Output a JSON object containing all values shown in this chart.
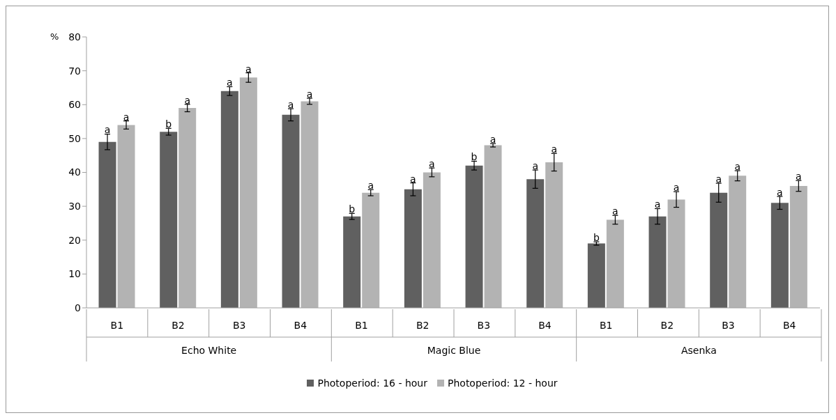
{
  "chart_data": {
    "type": "bar",
    "ylabel": "%",
    "categories": [
      "B1",
      "B2",
      "B3",
      "B4",
      "B1",
      "B2",
      "B3",
      "B4",
      "B1",
      "B2",
      "B3",
      "B4"
    ],
    "annotations": [
      "Echo White",
      "Magic Blue",
      "Asenka"
    ],
    "series": [
      {
        "name": "Photoperiod: 16 - hour",
        "color": "#606060",
        "values": [
          49,
          52,
          64,
          57,
          27,
          35,
          42,
          38,
          19,
          27,
          34,
          31
        ],
        "errors": [
          2.3,
          1,
          1.3,
          1.8,
          0.9,
          1.9,
          1.3,
          2.7,
          0.5,
          2.3,
          2.8,
          1.9
        ],
        "value_labels": [
          "a",
          "b",
          "a",
          "a",
          "b",
          "a",
          "b",
          "a",
          "b",
          "a",
          "a",
          "a"
        ]
      },
      {
        "name": "Photoperiod: 12 - hour",
        "color": "#b3b3b3",
        "values": [
          54,
          59,
          68,
          61,
          34,
          40,
          48,
          43,
          26,
          32,
          39,
          36
        ],
        "errors": [
          1.2,
          1.1,
          1.4,
          0.9,
          0.9,
          1.3,
          0.5,
          2.6,
          1.3,
          2.3,
          1.5,
          1.6
        ],
        "value_labels": [
          "a",
          "a",
          "a",
          "a",
          "a",
          "a",
          "a",
          "a",
          "a",
          "a",
          "a",
          "a"
        ]
      }
    ],
    "ylim": [
      0,
      80
    ],
    "yticks": [
      0,
      10,
      20,
      30,
      40,
      50,
      60,
      70,
      80
    ],
    "grid": false,
    "legend": "bottom"
  }
}
